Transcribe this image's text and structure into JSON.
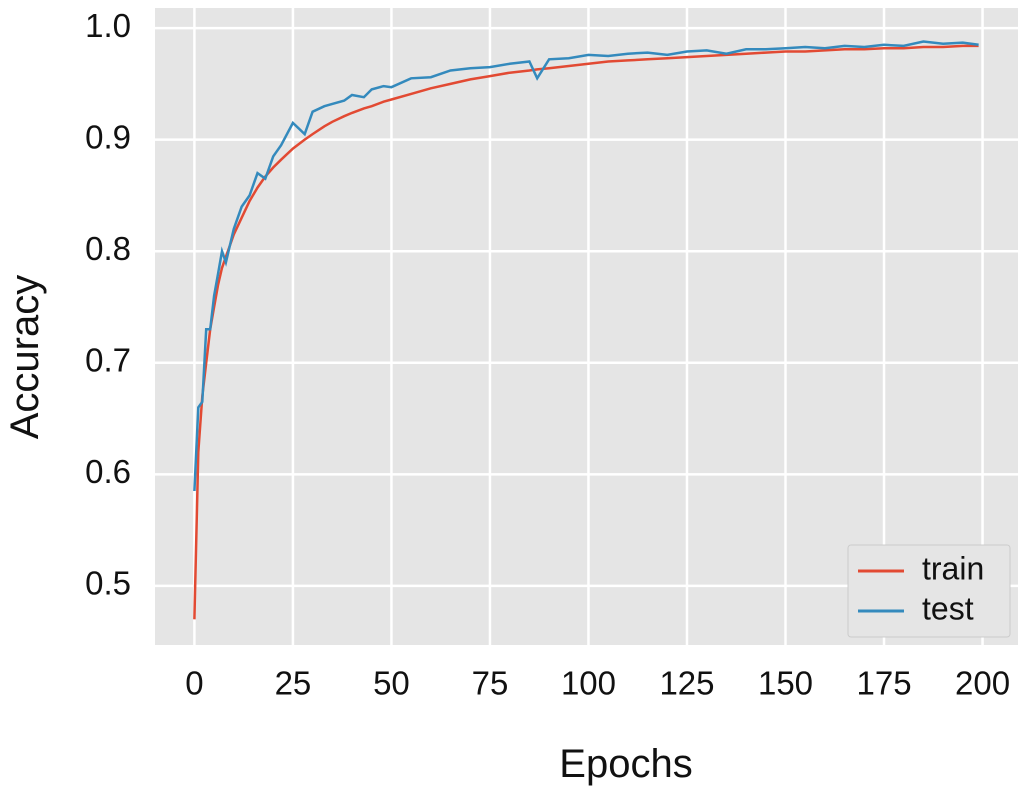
{
  "chart_data": {
    "type": "line",
    "xlabel": "Epochs",
    "ylabel": "Accuracy",
    "x": [
      0,
      1,
      2,
      3,
      4,
      5,
      6,
      7,
      8,
      10,
      12,
      14,
      16,
      18,
      20,
      22,
      25,
      28,
      30,
      33,
      35,
      38,
      40,
      43,
      45,
      48,
      50,
      55,
      60,
      65,
      70,
      75,
      80,
      85,
      87,
      90,
      95,
      100,
      105,
      110,
      115,
      120,
      125,
      130,
      135,
      140,
      145,
      150,
      155,
      160,
      165,
      170,
      175,
      180,
      185,
      190,
      195,
      199
    ],
    "series": [
      {
        "name": "train",
        "color": "#e24a33",
        "values": [
          0.47,
          0.62,
          0.67,
          0.7,
          0.73,
          0.75,
          0.77,
          0.785,
          0.795,
          0.815,
          0.83,
          0.845,
          0.857,
          0.867,
          0.875,
          0.882,
          0.892,
          0.9,
          0.905,
          0.912,
          0.916,
          0.921,
          0.924,
          0.928,
          0.93,
          0.934,
          0.936,
          0.941,
          0.946,
          0.95,
          0.954,
          0.957,
          0.96,
          0.962,
          0.963,
          0.964,
          0.966,
          0.968,
          0.97,
          0.971,
          0.972,
          0.973,
          0.974,
          0.975,
          0.976,
          0.977,
          0.978,
          0.979,
          0.979,
          0.98,
          0.981,
          0.981,
          0.982,
          0.982,
          0.983,
          0.983,
          0.984,
          0.984
        ]
      },
      {
        "name": "test",
        "color": "#348abd",
        "values": [
          0.585,
          0.66,
          0.665,
          0.73,
          0.73,
          0.76,
          0.78,
          0.8,
          0.79,
          0.82,
          0.84,
          0.85,
          0.87,
          0.865,
          0.885,
          0.895,
          0.915,
          0.905,
          0.925,
          0.93,
          0.932,
          0.935,
          0.94,
          0.938,
          0.945,
          0.948,
          0.947,
          0.955,
          0.956,
          0.962,
          0.964,
          0.965,
          0.968,
          0.97,
          0.955,
          0.972,
          0.973,
          0.976,
          0.975,
          0.977,
          0.978,
          0.976,
          0.979,
          0.98,
          0.977,
          0.981,
          0.981,
          0.982,
          0.983,
          0.982,
          0.984,
          0.983,
          0.985,
          0.984,
          0.988,
          0.986,
          0.987,
          0.985
        ]
      }
    ],
    "xlim": [
      -10,
      209
    ],
    "ylim": [
      0.447,
      1.018
    ],
    "xticks": [
      0,
      25,
      50,
      75,
      100,
      125,
      150,
      175,
      200
    ],
    "yticks": [
      0.5,
      0.6,
      0.7,
      0.8,
      0.9,
      {
        "value": 1,
        "label": "1.0"
      }
    ],
    "grid": true,
    "legend": "lower right"
  }
}
